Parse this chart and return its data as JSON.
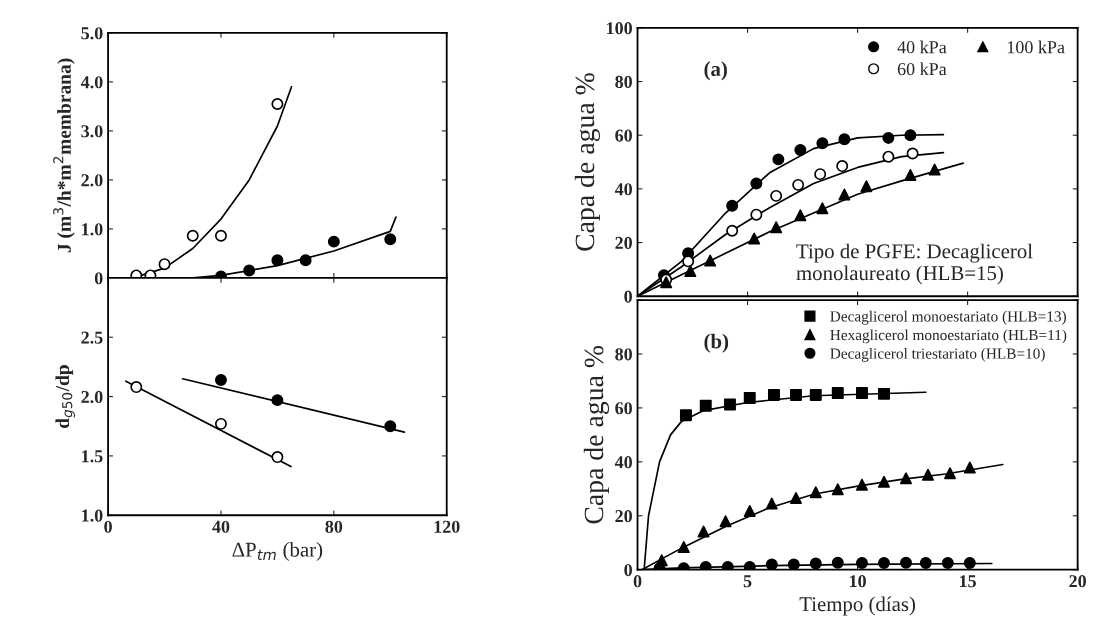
{
  "chart_data": [
    {
      "type": "scatter",
      "ylabel": "J (m$^{3}$/h*m$^{2}$membrana)",
      "xlim": [
        0,
        120
      ],
      "xticks": [
        {
          "value": 0,
          "label": null
        },
        {
          "value": 40,
          "label": null
        },
        {
          "value": 80,
          "label": null
        },
        {
          "value": 120,
          "label": null
        }
      ],
      "ylim": [
        0,
        5
      ],
      "yticks": [
        0,
        {
          "value": 1,
          "label": "1.0"
        },
        {
          "value": 2,
          "label": "2.0"
        },
        {
          "value": 3,
          "label": "3.0"
        },
        {
          "value": 4,
          "label": "4.0"
        },
        {
          "value": 5,
          "label": "5.0"
        }
      ],
      "tick_labels": "y",
      "grid": false,
      "legend": false,
      "series": [
        {
          "marker": "circle",
          "color": "#ffffff",
          "x": [
            10,
            15,
            20,
            30,
            40,
            60
          ],
          "values": [
            0.05,
            0.05,
            0.28,
            0.86,
            0.86,
            3.55
          ]
        },
        {
          "marker": "circle",
          "color": "#000000",
          "x": [
            40,
            50,
            60,
            70,
            80,
            100
          ],
          "values": [
            0.03,
            0.15,
            0.36,
            0.36,
            0.74,
            0.79
          ]
        },
        {
          "type": "line",
          "color": "#000000",
          "x": [
            10,
            20,
            30,
            40,
            50,
            60,
            65
          ],
          "values": [
            0.02,
            0.2,
            0.6,
            1.2,
            2.0,
            3.1,
            3.9
          ]
        },
        {
          "type": "line",
          "color": "#000000",
          "x": [
            30,
            40,
            60,
            80,
            100,
            102
          ],
          "values": [
            0.0,
            0.05,
            0.25,
            0.55,
            0.95,
            1.24
          ]
        }
      ]
    },
    {
      "type": "scatter",
      "ylabel": "d$_{g50}$/dp",
      "xlabel": "ΔP$_{tm}$ (bar)",
      "xlim": [
        0,
        120
      ],
      "xticks": [
        0,
        40,
        80,
        120
      ],
      "ylim": [
        1.0,
        3.0
      ],
      "yticks": [
        {
          "value": 1.0,
          "label": "1.0"
        },
        {
          "value": 1.5,
          "label": "1.5"
        },
        {
          "value": 2.0,
          "label": "2.0"
        },
        {
          "value": 2.5,
          "label": "2.5"
        }
      ],
      "grid": false,
      "legend": false,
      "series": [
        {
          "marker": "circle",
          "color": "#ffffff",
          "x": [
            10,
            40,
            60
          ],
          "values": [
            2.08,
            1.77,
            1.49
          ]
        },
        {
          "marker": "circle",
          "color": "#000000",
          "x": [
            40,
            60,
            100
          ],
          "values": [
            2.14,
            1.97,
            1.75
          ]
        },
        {
          "type": "line",
          "color": "#000000",
          "x": [
            6.3,
            64.8
          ],
          "values": [
            2.13,
            1.41
          ]
        },
        {
          "type": "line",
          "color": "#000000",
          "x": [
            26.4,
            105
          ],
          "values": [
            2.15,
            1.7
          ]
        }
      ]
    },
    {
      "type": "scatter",
      "ylabel": "Capa de agua %",
      "xlim": [
        0,
        20
      ],
      "xticks": [
        {
          "value": 0,
          "label": null
        },
        {
          "value": 5,
          "label": null
        },
        {
          "value": 10,
          "label": null
        },
        {
          "value": 15,
          "label": null
        },
        {
          "value": 20,
          "label": null
        }
      ],
      "ylim": [
        0,
        100
      ],
      "yticks": [
        0,
        20,
        40,
        60,
        80,
        100
      ],
      "tick_labels": "y",
      "grid": false,
      "legend": "top right",
      "annotations": [
        "(a)",
        "Tipo de PGFE: Decaglicerol\nmonolaureato (HLB=15)"
      ],
      "series": [
        {
          "name": "40 kPa",
          "marker": "circle",
          "color": "#000000",
          "x": [
            1.2,
            2.3,
            4.3,
            5.4,
            6.4,
            7.4,
            8.4,
            9.4,
            11.4,
            12.4
          ],
          "values": [
            7.8,
            16,
            33.7,
            42,
            51,
            54.5,
            57,
            58.5,
            59,
            60
          ]
        },
        {
          "name": "60 kPa",
          "marker": "circle",
          "color": "#ffffff",
          "x": [
            1.3,
            2.3,
            4.3,
            5.4,
            6.3,
            7.3,
            8.3,
            9.3,
            11.4,
            12.5
          ],
          "values": [
            6.2,
            13,
            24.4,
            30.4,
            37.4,
            41.5,
            45.5,
            48.5,
            52,
            53.2
          ]
        },
        {
          "name": "100 kPa",
          "marker": "triangle",
          "color": "#000000",
          "x": [
            1.3,
            2.4,
            3.3,
            5.3,
            6.3,
            7.4,
            8.4,
            9.4,
            10.4,
            12.4,
            13.5
          ],
          "values": [
            5.2,
            9.4,
            13.3,
            21.5,
            25.7,
            30.2,
            32.8,
            37.9,
            41,
            45.2,
            47.2
          ]
        },
        {
          "type": "line",
          "color": "#000000",
          "x": [
            0,
            2,
            4,
            6,
            8,
            10,
            12,
            13.9
          ],
          "values": [
            0,
            13,
            31,
            46,
            55,
            59,
            60,
            60.2
          ]
        },
        {
          "type": "line",
          "color": "#000000",
          "x": [
            0,
            2,
            4,
            6,
            8,
            10,
            12,
            13.9
          ],
          "values": [
            0,
            11,
            23,
            33,
            42,
            48,
            52,
            53.5
          ]
        },
        {
          "type": "line",
          "color": "#000000",
          "x": [
            0,
            2,
            4,
            6,
            8,
            10,
            12,
            14.8
          ],
          "values": [
            0,
            8,
            16,
            24,
            31,
            38,
            43,
            49.6
          ]
        }
      ]
    },
    {
      "type": "scatter",
      "ylabel": "Capa de agua %",
      "xlabel": "Tiempo (días)",
      "xlim": [
        0,
        20
      ],
      "xticks": [
        0,
        5,
        10,
        15,
        20
      ],
      "ylim": [
        0,
        100
      ],
      "yticks": [
        0,
        20,
        40,
        60,
        80,
        {
          "value": 100,
          "label": null
        }
      ],
      "grid": false,
      "legend": "top right",
      "annotations": [
        "(b)"
      ],
      "series": [
        {
          "name": "Decaglicerol monoestariato (HLB=13)",
          "marker": "square",
          "color": "#000000",
          "x": [
            2.2,
            3.1,
            4.2,
            5.1,
            6.2,
            7.2,
            8.1,
            9.1,
            10.2,
            11.2
          ],
          "values": [
            57.3,
            60.8,
            61.3,
            63.7,
            64.8,
            64.8,
            64.8,
            65.5,
            65.5,
            65.2
          ]
        },
        {
          "name": "Hexaglicerol monoestariato (HLB=11)",
          "marker": "triangle",
          "color": "#000000",
          "x": [
            1.1,
            2.1,
            3.0,
            4.0,
            5.1,
            6.1,
            7.2,
            8.1,
            9.1,
            10.2,
            11.2,
            12.2,
            13.2,
            14.2,
            15.1
          ],
          "values": [
            3.5,
            8.4,
            14.2,
            18,
            21.8,
            24.5,
            26.6,
            28.7,
            29.8,
            31.5,
            32.6,
            33.9,
            35.2,
            35.8,
            37.9
          ]
        },
        {
          "name": "Decaglicerol triestariato (HLB=10)",
          "marker": "circle",
          "color": "#000000",
          "x": [
            1.0,
            2.1,
            3.1,
            4.1,
            5.1,
            6.1,
            7.1,
            8.1,
            9.1,
            10.2,
            11.2,
            12.2,
            13.1,
            14.1,
            15.1
          ],
          "values": [
            0.5,
            0.5,
            1,
            1,
            1,
            1.9,
            1.9,
            2.3,
            2.6,
            2.5,
            2.5,
            2.6,
            2.5,
            2.5,
            2.5
          ]
        },
        {
          "type": "line",
          "color": "#000000",
          "x": [
            0.3,
            0.5,
            1,
            1.5,
            2,
            3,
            5,
            8,
            13.1
          ],
          "values": [
            0,
            20,
            40,
            50,
            55,
            59,
            62,
            64.5,
            65.8
          ]
        },
        {
          "type": "line",
          "color": "#000000",
          "x": [
            0.2,
            2,
            4,
            6,
            8,
            10,
            12,
            14,
            16.6
          ],
          "values": [
            0,
            8,
            16,
            23,
            28,
            31,
            33.5,
            35.5,
            39
          ]
        },
        {
          "type": "line",
          "color": "#000000",
          "x": [
            0.2,
            2,
            6,
            10,
            16.1
          ],
          "values": [
            0,
            0.7,
            1.5,
            2,
            2.3
          ]
        }
      ]
    }
  ]
}
